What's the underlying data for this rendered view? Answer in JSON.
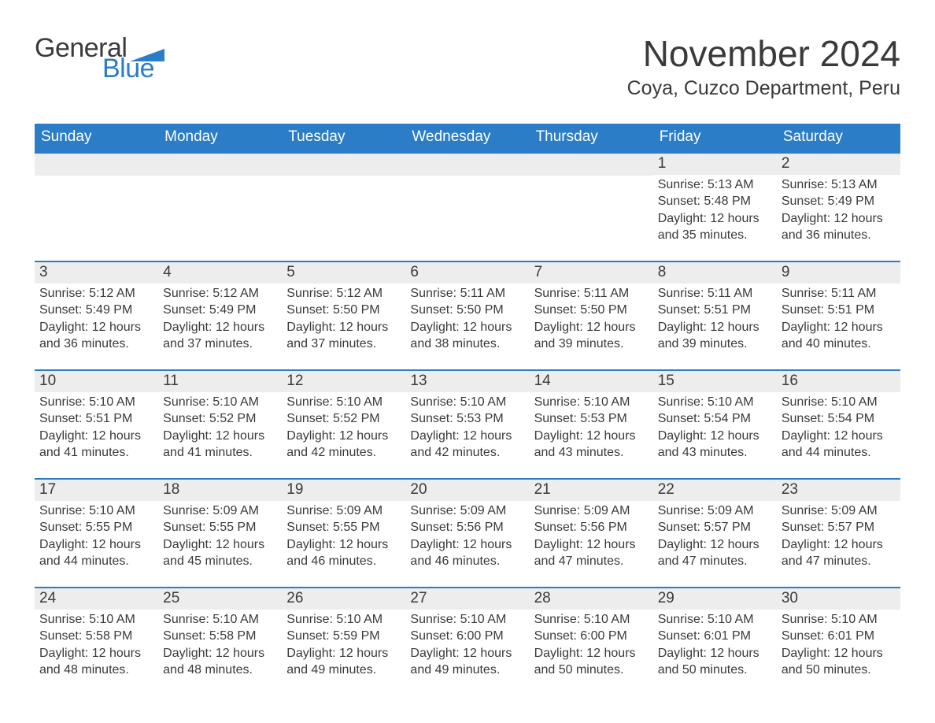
{
  "brand": {
    "word1": "General",
    "word2": "Blue",
    "word1_color": "#3a3a3a",
    "word2_color": "#2a7dc6",
    "flag_color": "#2a7dc6"
  },
  "header": {
    "month_title": "November 2024",
    "location": "Coya, Cuzco Department, Peru"
  },
  "colors": {
    "header_bg": "#2a7dc6",
    "header_text": "#ffffff",
    "daynum_bg": "#ededed",
    "row_border": "#2a7dc6",
    "body_text": "#3a3a3a",
    "page_bg": "#ffffff"
  },
  "calendar": {
    "weekdays": [
      "Sunday",
      "Monday",
      "Tuesday",
      "Wednesday",
      "Thursday",
      "Friday",
      "Saturday"
    ],
    "leading_blanks": 5,
    "days": [
      {
        "n": 1,
        "sunrise": "5:13 AM",
        "sunset": "5:48 PM",
        "daylight": "12 hours and 35 minutes."
      },
      {
        "n": 2,
        "sunrise": "5:13 AM",
        "sunset": "5:49 PM",
        "daylight": "12 hours and 36 minutes."
      },
      {
        "n": 3,
        "sunrise": "5:12 AM",
        "sunset": "5:49 PM",
        "daylight": "12 hours and 36 minutes."
      },
      {
        "n": 4,
        "sunrise": "5:12 AM",
        "sunset": "5:49 PM",
        "daylight": "12 hours and 37 minutes."
      },
      {
        "n": 5,
        "sunrise": "5:12 AM",
        "sunset": "5:50 PM",
        "daylight": "12 hours and 37 minutes."
      },
      {
        "n": 6,
        "sunrise": "5:11 AM",
        "sunset": "5:50 PM",
        "daylight": "12 hours and 38 minutes."
      },
      {
        "n": 7,
        "sunrise": "5:11 AM",
        "sunset": "5:50 PM",
        "daylight": "12 hours and 39 minutes."
      },
      {
        "n": 8,
        "sunrise": "5:11 AM",
        "sunset": "5:51 PM",
        "daylight": "12 hours and 39 minutes."
      },
      {
        "n": 9,
        "sunrise": "5:11 AM",
        "sunset": "5:51 PM",
        "daylight": "12 hours and 40 minutes."
      },
      {
        "n": 10,
        "sunrise": "5:10 AM",
        "sunset": "5:51 PM",
        "daylight": "12 hours and 41 minutes."
      },
      {
        "n": 11,
        "sunrise": "5:10 AM",
        "sunset": "5:52 PM",
        "daylight": "12 hours and 41 minutes."
      },
      {
        "n": 12,
        "sunrise": "5:10 AM",
        "sunset": "5:52 PM",
        "daylight": "12 hours and 42 minutes."
      },
      {
        "n": 13,
        "sunrise": "5:10 AM",
        "sunset": "5:53 PM",
        "daylight": "12 hours and 42 minutes."
      },
      {
        "n": 14,
        "sunrise": "5:10 AM",
        "sunset": "5:53 PM",
        "daylight": "12 hours and 43 minutes."
      },
      {
        "n": 15,
        "sunrise": "5:10 AM",
        "sunset": "5:54 PM",
        "daylight": "12 hours and 43 minutes."
      },
      {
        "n": 16,
        "sunrise": "5:10 AM",
        "sunset": "5:54 PM",
        "daylight": "12 hours and 44 minutes."
      },
      {
        "n": 17,
        "sunrise": "5:10 AM",
        "sunset": "5:55 PM",
        "daylight": "12 hours and 44 minutes."
      },
      {
        "n": 18,
        "sunrise": "5:09 AM",
        "sunset": "5:55 PM",
        "daylight": "12 hours and 45 minutes."
      },
      {
        "n": 19,
        "sunrise": "5:09 AM",
        "sunset": "5:55 PM",
        "daylight": "12 hours and 46 minutes."
      },
      {
        "n": 20,
        "sunrise": "5:09 AM",
        "sunset": "5:56 PM",
        "daylight": "12 hours and 46 minutes."
      },
      {
        "n": 21,
        "sunrise": "5:09 AM",
        "sunset": "5:56 PM",
        "daylight": "12 hours and 47 minutes."
      },
      {
        "n": 22,
        "sunrise": "5:09 AM",
        "sunset": "5:57 PM",
        "daylight": "12 hours and 47 minutes."
      },
      {
        "n": 23,
        "sunrise": "5:09 AM",
        "sunset": "5:57 PM",
        "daylight": "12 hours and 47 minutes."
      },
      {
        "n": 24,
        "sunrise": "5:10 AM",
        "sunset": "5:58 PM",
        "daylight": "12 hours and 48 minutes."
      },
      {
        "n": 25,
        "sunrise": "5:10 AM",
        "sunset": "5:58 PM",
        "daylight": "12 hours and 48 minutes."
      },
      {
        "n": 26,
        "sunrise": "5:10 AM",
        "sunset": "5:59 PM",
        "daylight": "12 hours and 49 minutes."
      },
      {
        "n": 27,
        "sunrise": "5:10 AM",
        "sunset": "6:00 PM",
        "daylight": "12 hours and 49 minutes."
      },
      {
        "n": 28,
        "sunrise": "5:10 AM",
        "sunset": "6:00 PM",
        "daylight": "12 hours and 50 minutes."
      },
      {
        "n": 29,
        "sunrise": "5:10 AM",
        "sunset": "6:01 PM",
        "daylight": "12 hours and 50 minutes."
      },
      {
        "n": 30,
        "sunrise": "5:10 AM",
        "sunset": "6:01 PM",
        "daylight": "12 hours and 50 minutes."
      }
    ],
    "labels": {
      "sunrise": "Sunrise:",
      "sunset": "Sunset:",
      "daylight": "Daylight:"
    }
  }
}
